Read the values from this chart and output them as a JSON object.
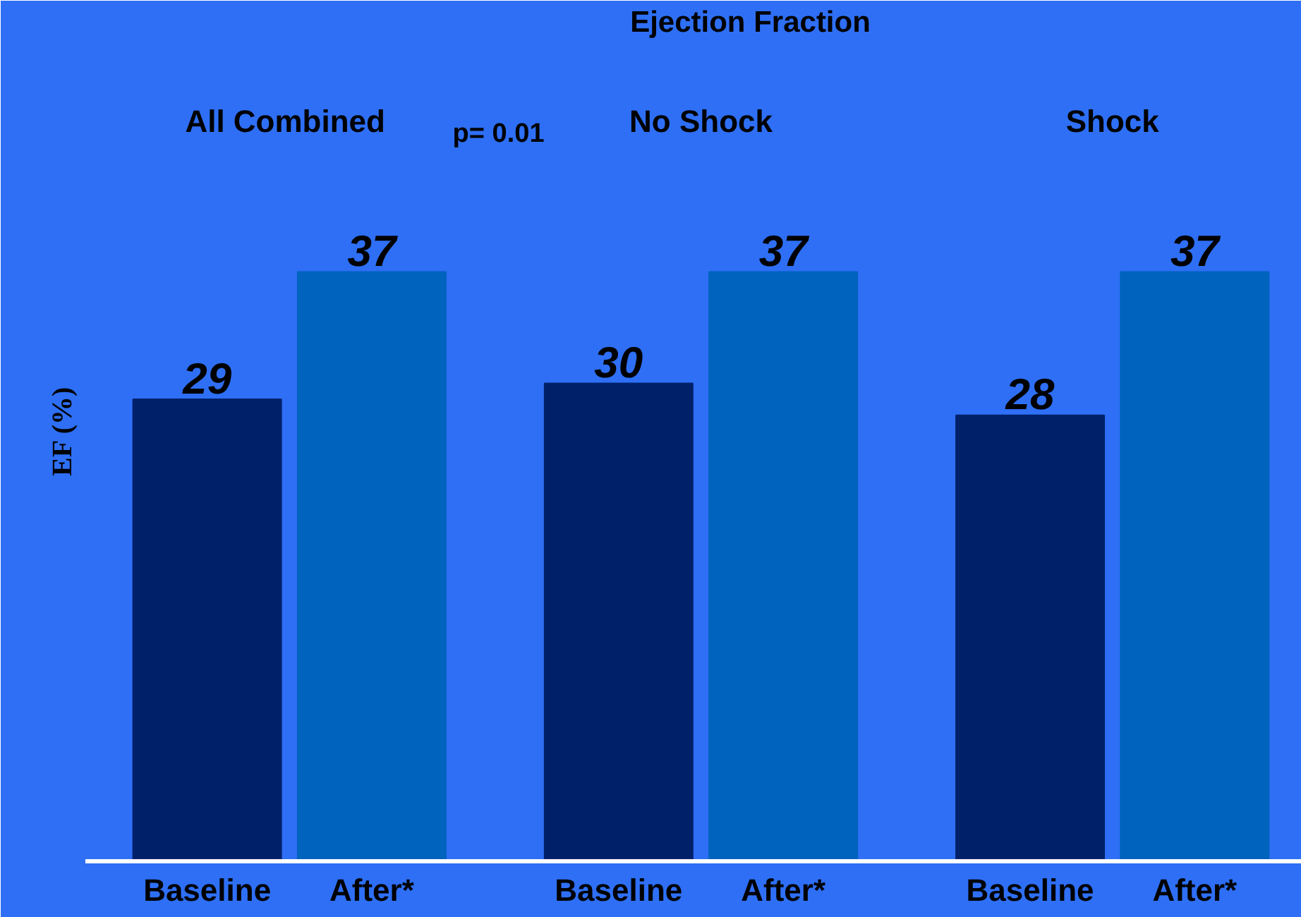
{
  "chart_data": {
    "type": "bar",
    "title": "Ejection Fraction",
    "ylabel": "EF (%)",
    "categories": [
      "Baseline",
      "After*",
      "Baseline",
      "After*",
      "Baseline",
      "After*"
    ],
    "values": [
      29,
      37,
      30,
      37,
      28,
      37
    ],
    "colors": [
      "#00216a",
      "#0063bd",
      "#00216a",
      "#0063bd",
      "#00216a",
      "#0063bd"
    ],
    "data_labels": true,
    "grid": false,
    "annotations": [
      "All  Combined",
      "No Shock",
      "Shock",
      "p= 0.01"
    ]
  }
}
